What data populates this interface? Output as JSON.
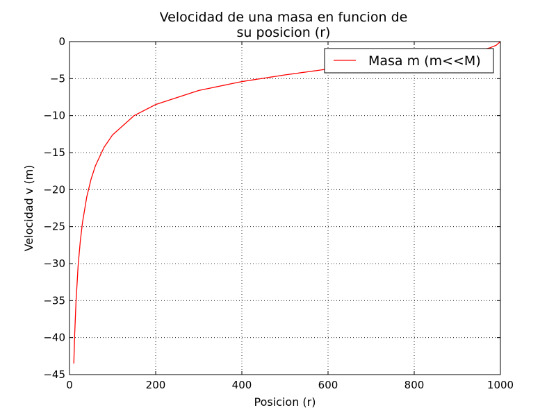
{
  "chart_data": {
    "type": "line",
    "title_lines": [
      "Velocidad de una masa en funcion de",
      "su posicion (r)"
    ],
    "xlabel": "Posicion (r)",
    "ylabel": "Velocidad v (m)",
    "xlim": [
      0,
      1000
    ],
    "ylim": [
      -45,
      0
    ],
    "xticks": [
      0,
      200,
      400,
      600,
      800,
      1000
    ],
    "yticks": [
      0,
      -5,
      -10,
      -15,
      -20,
      -25,
      -30,
      -35,
      -40,
      -45
    ],
    "xtick_labels": [
      "0",
      "200",
      "400",
      "600",
      "800",
      "1000"
    ],
    "ytick_labels": [
      "0",
      "−5",
      "−10",
      "−15",
      "−20",
      "−25",
      "−30",
      "−35",
      "−40",
      "−45"
    ],
    "grid": true,
    "legend_position": "top-right",
    "series": [
      {
        "name": "Masa m (m<<M)",
        "color": "#ff0000",
        "x": [
          10,
          12,
          15,
          20,
          25,
          30,
          40,
          50,
          60,
          80,
          100,
          150,
          200,
          300,
          400,
          500,
          600,
          700,
          800,
          900,
          950,
          975,
          990,
          1000
        ],
        "y": [
          -43.5,
          -39.6,
          -35.3,
          -30.3,
          -27.0,
          -24.5,
          -21.0,
          -18.6,
          -16.8,
          -14.3,
          -12.6,
          -10.0,
          -8.5,
          -6.6,
          -5.4,
          -4.5,
          -3.7,
          -3.0,
          -2.4,
          -1.7,
          -1.2,
          -0.85,
          -0.5,
          0
        ]
      }
    ]
  }
}
